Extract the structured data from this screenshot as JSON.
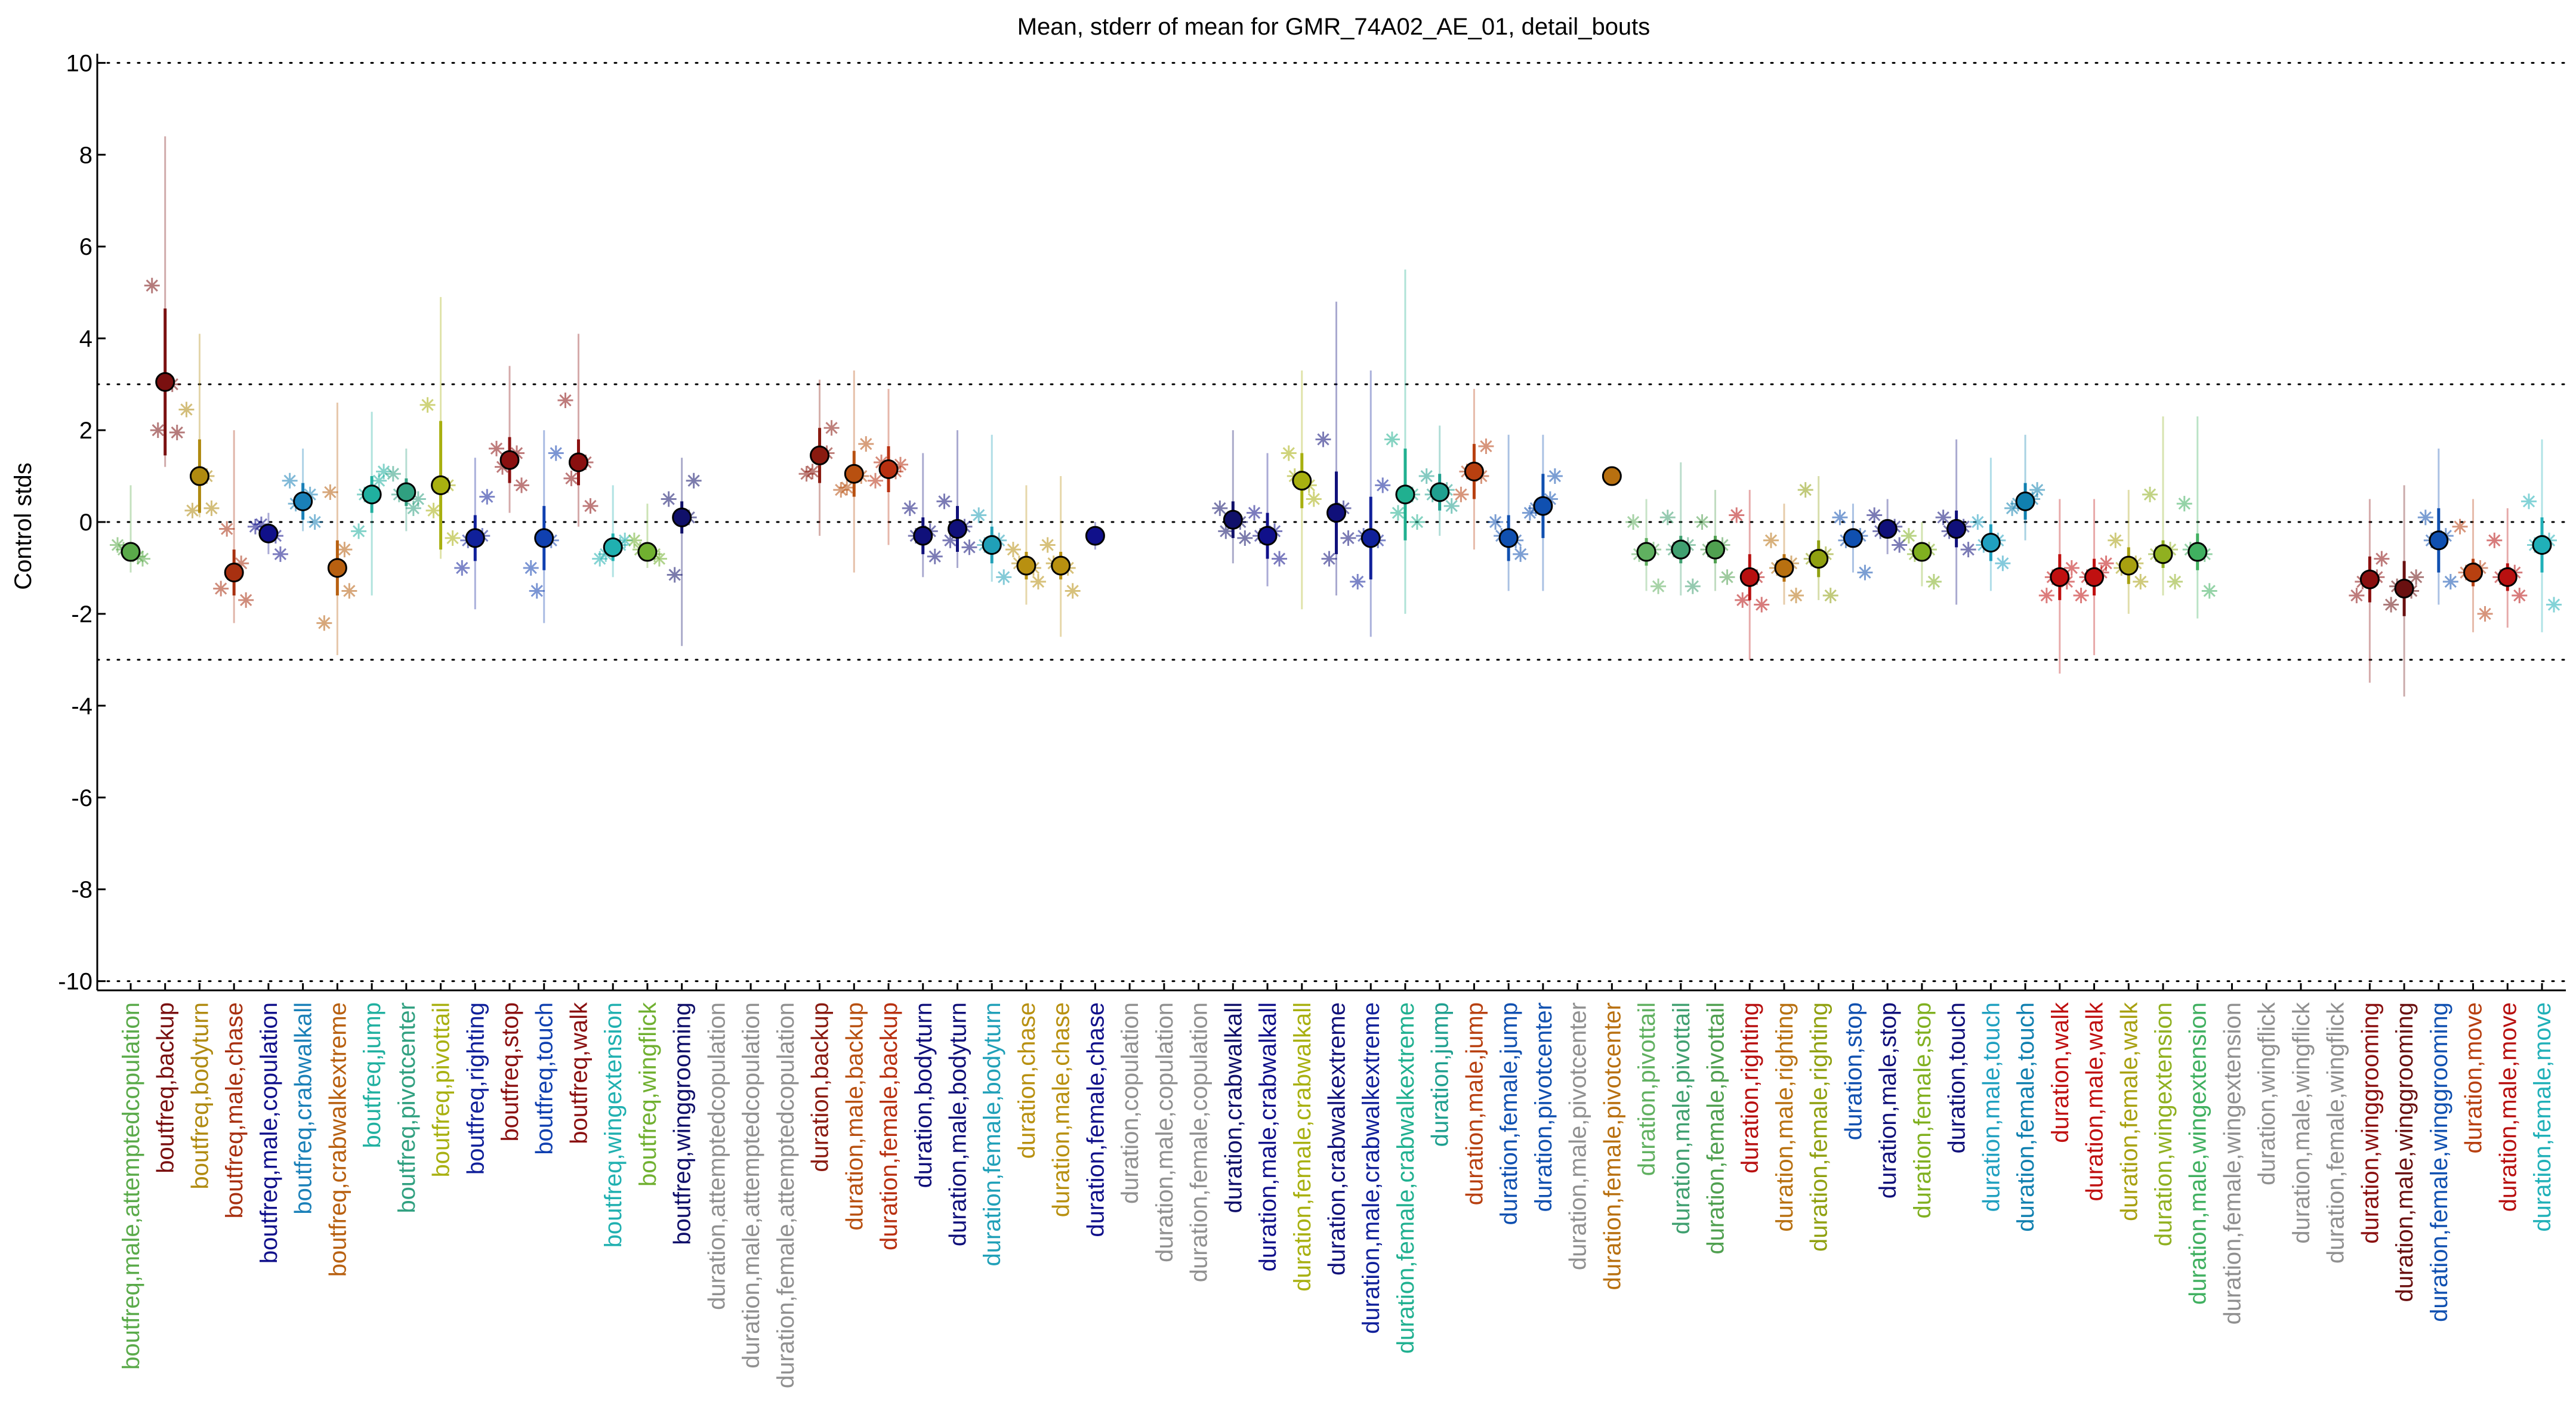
{
  "chart_data": {
    "type": "scatter",
    "title": "Mean, stderr of mean for GMR_74A02_AE_01, detail_bouts",
    "xlabel": "",
    "ylabel": "Control stds",
    "ylim": [
      -10.2,
      10.2
    ],
    "yticks": [
      -10,
      -8,
      -6,
      -4,
      -2,
      0,
      2,
      4,
      6,
      8,
      10
    ],
    "reference_lines": [
      -10,
      -3,
      0,
      3,
      10
    ],
    "grid": false,
    "legend": "none",
    "categories": [
      {
        "label": "boutfreq,male,attemptedcopulation",
        "color": "#5aaa4a",
        "mean": -0.65,
        "sem": 0.2,
        "sdlo": -1.1,
        "sdhi": 0.8,
        "pts": [
          -0.5,
          -0.8,
          -0.6,
          -0.75
        ]
      },
      {
        "label": "boutfreq,backup",
        "color": "#7a1010",
        "mean": 3.05,
        "sem": 1.6,
        "sdlo": 1.2,
        "sdhi": 8.4,
        "pts": [
          5.15,
          1.95,
          2.0,
          3.0
        ]
      },
      {
        "label": "boutfreq,bodyturn",
        "color": "#b08a10",
        "mean": 1.0,
        "sem": 0.8,
        "sdlo": 0.1,
        "sdhi": 4.1,
        "pts": [
          2.45,
          0.3,
          0.25,
          1.0
        ]
      },
      {
        "label": "boutfreq,male,chase",
        "color": "#a83010",
        "mean": -1.1,
        "sem": 0.5,
        "sdlo": -2.2,
        "sdhi": 2.0,
        "pts": [
          -1.45,
          -1.7,
          -0.15,
          -0.9
        ]
      },
      {
        "label": "boutfreq,male,copulation",
        "color": "#10108a",
        "mean": -0.25,
        "sem": 0.15,
        "sdlo": -0.7,
        "sdhi": 0.2,
        "pts": [
          -0.1,
          -0.7,
          -0.05,
          -0.3
        ]
      },
      {
        "label": "boutfreq,crabwalkall",
        "color": "#1a80b8",
        "mean": 0.45,
        "sem": 0.4,
        "sdlo": -0.2,
        "sdhi": 1.6,
        "pts": [
          0.9,
          0.0,
          0.4,
          0.6
        ]
      },
      {
        "label": "boutfreq,crabwalkextreme",
        "color": "#b86010",
        "mean": -1.0,
        "sem": 0.6,
        "sdlo": -2.9,
        "sdhi": 2.6,
        "pts": [
          -2.2,
          -1.5,
          0.65,
          -0.6
        ]
      },
      {
        "label": "boutfreq,jump",
        "color": "#20b0a0",
        "mean": 0.6,
        "sem": 0.4,
        "sdlo": -1.6,
        "sdhi": 2.4,
        "pts": [
          -0.2,
          1.1,
          0.6,
          0.9
        ]
      },
      {
        "label": "boutfreq,pivotcenter",
        "color": "#30a080",
        "mean": 0.65,
        "sem": 0.3,
        "sdlo": -0.2,
        "sdhi": 1.6,
        "pts": [
          1.05,
          0.5,
          0.6,
          0.3
        ]
      },
      {
        "label": "boutfreq,pivottail",
        "color": "#a8b010",
        "mean": 0.8,
        "sem": 1.4,
        "sdlo": -0.8,
        "sdhi": 4.9,
        "pts": [
          2.55,
          -0.35,
          0.25,
          0.8
        ]
      },
      {
        "label": "boutfreq,righting",
        "color": "#10209a",
        "mean": -0.35,
        "sem": 0.5,
        "sdlo": -1.9,
        "sdhi": 1.4,
        "pts": [
          -1.0,
          0.55,
          -0.4,
          -0.3
        ]
      },
      {
        "label": "boutfreq,stop",
        "color": "#8a1010",
        "mean": 1.35,
        "sem": 0.5,
        "sdlo": 0.2,
        "sdhi": 3.4,
        "pts": [
          1.6,
          0.8,
          1.2,
          1.5
        ]
      },
      {
        "label": "boutfreq,touch",
        "color": "#1040b0",
        "mean": -0.35,
        "sem": 0.7,
        "sdlo": -2.2,
        "sdhi": 2.0,
        "pts": [
          -1.0,
          1.5,
          -1.5,
          -0.4
        ]
      },
      {
        "label": "boutfreq,walk",
        "color": "#8a1010",
        "mean": 1.3,
        "sem": 0.5,
        "sdlo": -0.1,
        "sdhi": 4.1,
        "pts": [
          2.65,
          0.35,
          0.95,
          1.3
        ]
      },
      {
        "label": "boutfreq,wingextension",
        "color": "#20b0b0",
        "mean": -0.55,
        "sem": 0.3,
        "sdlo": -1.2,
        "sdhi": 0.8,
        "pts": [
          -0.8,
          -0.4,
          -0.7,
          -0.5
        ]
      },
      {
        "label": "boutfreq,wingflick",
        "color": "#70b030",
        "mean": -0.65,
        "sem": 0.15,
        "sdlo": -1.0,
        "sdhi": 0.4,
        "pts": [
          -0.4,
          -0.8,
          -0.6,
          -0.7
        ]
      },
      {
        "label": "boutfreq,winggrooming",
        "color": "#10106a",
        "mean": 0.1,
        "sem": 0.35,
        "sdlo": -2.7,
        "sdhi": 1.4,
        "pts": [
          0.5,
          0.9,
          -1.15,
          0.1
        ]
      },
      {
        "label": "duration,attemptedcopulation",
        "color": "#909090"
      },
      {
        "label": "duration,male,attemptedcopulation",
        "color": "#909090"
      },
      {
        "label": "duration,female,attemptedcopulation",
        "color": "#909090"
      },
      {
        "label": "duration,backup",
        "color": "#8a1a10",
        "mean": 1.45,
        "sem": 0.6,
        "sdlo": -0.3,
        "sdhi": 3.1,
        "pts": [
          1.05,
          2.05,
          1.1,
          1.5
        ]
      },
      {
        "label": "duration,male,backup",
        "color": "#b85010",
        "mean": 1.05,
        "sem": 0.5,
        "sdlo": -1.1,
        "sdhi": 3.3,
        "pts": [
          0.7,
          1.7,
          0.75,
          1.0
        ]
      },
      {
        "label": "duration,female,backup",
        "color": "#b83010",
        "mean": 1.15,
        "sem": 0.5,
        "sdlo": -0.5,
        "sdhi": 2.9,
        "pts": [
          0.9,
          1.25,
          1.3,
          1.1
        ]
      },
      {
        "label": "duration,bodyturn",
        "color": "#10107a",
        "mean": -0.3,
        "sem": 0.4,
        "sdlo": -1.2,
        "sdhi": 1.5,
        "pts": [
          0.3,
          -0.75,
          -0.3,
          -0.2
        ]
      },
      {
        "label": "duration,male,bodyturn",
        "color": "#10107a",
        "mean": -0.15,
        "sem": 0.5,
        "sdlo": -1.0,
        "sdhi": 2.0,
        "pts": [
          0.45,
          -0.55,
          -0.4,
          -0.1
        ]
      },
      {
        "label": "duration,female,bodyturn",
        "color": "#20a0b8",
        "mean": -0.5,
        "sem": 0.4,
        "sdlo": -1.3,
        "sdhi": 1.9,
        "pts": [
          0.15,
          -1.2,
          -0.5,
          -0.4
        ]
      },
      {
        "label": "duration,chase",
        "color": "#b89010",
        "mean": -0.95,
        "sem": 0.3,
        "sdlo": -1.8,
        "sdhi": 0.8,
        "pts": [
          -0.6,
          -1.3,
          -0.9,
          -1.0
        ]
      },
      {
        "label": "duration,male,chase",
        "color": "#b89010",
        "mean": -0.95,
        "sem": 0.3,
        "sdlo": -2.5,
        "sdhi": 1.0,
        "pts": [
          -0.5,
          -1.5,
          -0.9,
          -1.0
        ]
      },
      {
        "label": "duration,female,chase",
        "color": "#10108a",
        "mean": -0.3,
        "sem": 0.2,
        "sdlo": -0.6,
        "sdhi": 0.0,
        "pts": []
      },
      {
        "label": "duration,copulation",
        "color": "#909090"
      },
      {
        "label": "duration,male,copulation",
        "color": "#909090"
      },
      {
        "label": "duration,female,copulation",
        "color": "#909090"
      },
      {
        "label": "duration,crabwalkall",
        "color": "#10106a",
        "mean": 0.05,
        "sem": 0.4,
        "sdlo": -0.9,
        "sdhi": 2.0,
        "pts": [
          0.3,
          -0.35,
          -0.2,
          0.0
        ]
      },
      {
        "label": "duration,male,crabwalkall",
        "color": "#10108a",
        "mean": -0.3,
        "sem": 0.5,
        "sdlo": -1.4,
        "sdhi": 1.5,
        "pts": [
          0.2,
          -0.8,
          -0.3,
          -0.2
        ]
      },
      {
        "label": "duration,female,crabwalkall",
        "color": "#a8b010",
        "mean": 0.9,
        "sem": 0.6,
        "sdlo": -1.9,
        "sdhi": 3.3,
        "pts": [
          1.5,
          0.5,
          1.0,
          0.8
        ]
      },
      {
        "label": "duration,crabwalkextreme",
        "color": "#10107a",
        "mean": 0.2,
        "sem": 0.9,
        "sdlo": -1.6,
        "sdhi": 4.8,
        "pts": [
          1.8,
          -0.35,
          -0.8,
          0.3
        ]
      },
      {
        "label": "duration,male,crabwalkextreme",
        "color": "#10209a",
        "mean": -0.35,
        "sem": 0.9,
        "sdlo": -2.5,
        "sdhi": 3.3,
        "pts": [
          -1.3,
          0.8,
          -0.3,
          -0.4
        ]
      },
      {
        "label": "duration,female,crabwalkextreme",
        "color": "#20b090",
        "mean": 0.6,
        "sem": 1.0,
        "sdlo": -2.0,
        "sdhi": 5.5,
        "pts": [
          1.8,
          0.0,
          0.2,
          0.6
        ]
      },
      {
        "label": "duration,jump",
        "color": "#20a090",
        "mean": 0.65,
        "sem": 0.4,
        "sdlo": -0.3,
        "sdhi": 2.1,
        "pts": [
          1.0,
          0.35,
          0.6,
          0.7
        ]
      },
      {
        "label": "duration,male,jump",
        "color": "#b84010",
        "mean": 1.1,
        "sem": 0.6,
        "sdlo": -0.6,
        "sdhi": 2.9,
        "pts": [
          0.6,
          1.65,
          1.1,
          1.0
        ]
      },
      {
        "label": "duration,female,jump",
        "color": "#1050b0",
        "mean": -0.35,
        "sem": 0.5,
        "sdlo": -1.5,
        "sdhi": 1.9,
        "pts": [
          0.0,
          -0.7,
          -0.3,
          -0.4
        ]
      },
      {
        "label": "duration,pivotcenter",
        "color": "#1050b0",
        "mean": 0.35,
        "sem": 0.7,
        "sdlo": -1.5,
        "sdhi": 1.9,
        "pts": [
          0.2,
          1.0,
          0.3,
          0.5
        ]
      },
      {
        "label": "duration,male,pivotcenter",
        "color": "#909090"
      },
      {
        "label": "duration,female,pivotcenter",
        "color": "#b87010",
        "mean": 1.0,
        "sem": 0.0,
        "sdlo": 1.0,
        "sdhi": 1.0,
        "pts": []
      },
      {
        "label": "duration,pivottail",
        "color": "#60b060",
        "mean": -0.65,
        "sem": 0.3,
        "sdlo": -1.5,
        "sdhi": 0.5,
        "pts": [
          0.0,
          -1.4,
          -0.7,
          -0.6
        ]
      },
      {
        "label": "duration,male,pivottail",
        "color": "#40a070",
        "mean": -0.6,
        "sem": 0.3,
        "sdlo": -1.6,
        "sdhi": 1.3,
        "pts": [
          0.1,
          -1.4,
          -0.6,
          -0.5
        ]
      },
      {
        "label": "duration,female,pivottail",
        "color": "#50a050",
        "mean": -0.6,
        "sem": 0.3,
        "sdlo": -1.5,
        "sdhi": 0.7,
        "pts": [
          0.0,
          -1.2,
          -0.6,
          -0.5
        ]
      },
      {
        "label": "duration,righting",
        "color": "#b81010",
        "mean": -1.2,
        "sem": 0.5,
        "sdlo": -3.0,
        "sdhi": 0.7,
        "pts": [
          0.15,
          -1.8,
          -1.7,
          -1.2
        ]
      },
      {
        "label": "duration,male,righting",
        "color": "#b87010",
        "mean": -1.0,
        "sem": 0.3,
        "sdlo": -1.8,
        "sdhi": 0.4,
        "pts": [
          -0.4,
          -1.6,
          -1.0,
          -0.9
        ]
      },
      {
        "label": "duration,female,righting",
        "color": "#90a010",
        "mean": -0.8,
        "sem": 0.4,
        "sdlo": -1.7,
        "sdhi": 1.0,
        "pts": [
          0.7,
          -1.6,
          -0.8,
          -0.7
        ]
      },
      {
        "label": "duration,stop",
        "color": "#1050b0",
        "mean": -0.35,
        "sem": 0.2,
        "sdlo": -1.1,
        "sdhi": 0.4,
        "pts": [
          0.1,
          -1.1,
          -0.4,
          -0.3
        ]
      },
      {
        "label": "duration,male,stop",
        "color": "#10107a",
        "mean": -0.15,
        "sem": 0.2,
        "sdlo": -0.7,
        "sdhi": 0.5,
        "pts": [
          0.15,
          -0.5,
          -0.2,
          -0.1
        ]
      },
      {
        "label": "duration,female,stop",
        "color": "#80b020",
        "mean": -0.65,
        "sem": 0.2,
        "sdlo": -1.4,
        "sdhi": 0.0,
        "pts": [
          -0.3,
          -1.3,
          -0.7,
          -0.6
        ]
      },
      {
        "label": "duration,touch",
        "color": "#10107a",
        "mean": -0.15,
        "sem": 0.4,
        "sdlo": -1.8,
        "sdhi": 1.8,
        "pts": [
          0.1,
          -0.6,
          -0.2,
          -0.1
        ]
      },
      {
        "label": "duration,male,touch",
        "color": "#20a0c0",
        "mean": -0.45,
        "sem": 0.4,
        "sdlo": -1.5,
        "sdhi": 1.4,
        "pts": [
          0.0,
          -0.9,
          -0.5,
          -0.4
        ]
      },
      {
        "label": "duration,female,touch",
        "color": "#1080b0",
        "mean": 0.45,
        "sem": 0.4,
        "sdlo": -0.4,
        "sdhi": 1.9,
        "pts": [
          0.3,
          0.7,
          0.4,
          0.5
        ]
      },
      {
        "label": "duration,walk",
        "color": "#c01010",
        "mean": -1.2,
        "sem": 0.5,
        "sdlo": -3.3,
        "sdhi": 0.5,
        "pts": [
          -1.6,
          -1.0,
          -1.2,
          -1.3
        ]
      },
      {
        "label": "duration,male,walk",
        "color": "#c01010",
        "mean": -1.2,
        "sem": 0.4,
        "sdlo": -2.9,
        "sdhi": 0.5,
        "pts": [
          -1.6,
          -0.9,
          -1.2,
          -1.1
        ]
      },
      {
        "label": "duration,female,walk",
        "color": "#a8a010",
        "mean": -0.95,
        "sem": 0.4,
        "sdlo": -2.0,
        "sdhi": 0.7,
        "pts": [
          -0.4,
          -1.3,
          -1.0,
          -0.9
        ]
      },
      {
        "label": "duration,wingextension",
        "color": "#90b020",
        "mean": -0.7,
        "sem": 0.3,
        "sdlo": -1.6,
        "sdhi": 2.3,
        "pts": [
          0.6,
          -1.3,
          -0.7,
          -0.6
        ]
      },
      {
        "label": "duration,male,wingextension",
        "color": "#40b060",
        "mean": -0.65,
        "sem": 0.4,
        "sdlo": -2.1,
        "sdhi": 2.3,
        "pts": [
          0.4,
          -1.5,
          -0.6,
          -0.7
        ]
      },
      {
        "label": "duration,female,wingextension",
        "color": "#909090"
      },
      {
        "label": "duration,wingflick",
        "color": "#909090"
      },
      {
        "label": "duration,male,wingflick",
        "color": "#909090"
      },
      {
        "label": "duration,female,wingflick",
        "color": "#909090"
      },
      {
        "label": "duration,winggrooming",
        "color": "#8a1010",
        "mean": -1.25,
        "sem": 0.5,
        "sdlo": -3.5,
        "sdhi": 0.5,
        "pts": [
          -1.6,
          -0.8,
          -1.3,
          -1.2
        ]
      },
      {
        "label": "duration,male,winggrooming",
        "color": "#6a1010",
        "mean": -1.45,
        "sem": 0.6,
        "sdlo": -3.8,
        "sdhi": 0.8,
        "pts": [
          -1.8,
          -1.2,
          -1.4,
          -1.5
        ]
      },
      {
        "label": "duration,female,winggrooming",
        "color": "#1050b0",
        "mean": -0.4,
        "sem": 0.7,
        "sdlo": -1.8,
        "sdhi": 1.6,
        "pts": [
          0.1,
          -1.3,
          -0.4,
          -0.3
        ]
      },
      {
        "label": "duration,move",
        "color": "#b84010",
        "mean": -1.1,
        "sem": 0.3,
        "sdlo": -2.4,
        "sdhi": 0.5,
        "pts": [
          -0.1,
          -2.0,
          -1.1,
          -1.0
        ]
      },
      {
        "label": "duration,male,move",
        "color": "#b81010",
        "mean": -1.2,
        "sem": 0.3,
        "sdlo": -2.3,
        "sdhi": 0.3,
        "pts": [
          -0.4,
          -1.6,
          -1.2,
          -1.1
        ]
      },
      {
        "label": "duration,female,move",
        "color": "#20b0b8",
        "mean": -0.5,
        "sem": 0.6,
        "sdlo": -2.4,
        "sdhi": 1.8,
        "pts": [
          0.45,
          -1.8,
          -0.5,
          -0.4
        ]
      }
    ]
  }
}
